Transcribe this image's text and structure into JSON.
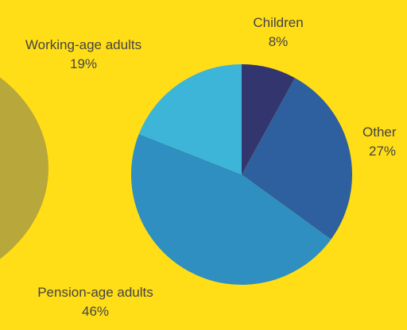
{
  "chart_data": {
    "type": "pie",
    "slices": [
      {
        "label": "Children",
        "value": 8,
        "display": "8%",
        "color": "#32356E"
      },
      {
        "label": "Other",
        "value": 27,
        "display": "27%",
        "color": "#2E5F9E"
      },
      {
        "label": "Pension-age adults",
        "value": 46,
        "display": "46%",
        "color": "#2E8FC0"
      },
      {
        "label": "Working-age adults",
        "value": 19,
        "display": "19%",
        "color": "#3DB5D9"
      }
    ],
    "background": "#FFDE17",
    "decoration_color": "#B8A73A"
  }
}
